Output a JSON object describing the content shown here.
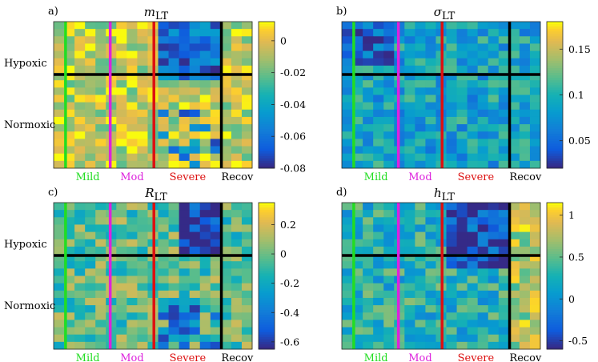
{
  "chart_data": [
    {
      "type": "heatmap",
      "panel_label": "a)",
      "title_var": "m",
      "title_sub": "LT",
      "colorbar_ticks": [
        "0",
        "-0.02",
        "-0.04",
        "-0.06",
        "-0.08"
      ],
      "colorbar_tick_values": [
        0,
        -0.02,
        -0.04,
        -0.06,
        -0.08
      ],
      "clim": [
        -0.08,
        0.012
      ],
      "phase_labels": [
        "Mild",
        "Mod",
        "Severe",
        "Recov"
      ],
      "row_labels": [
        "Hypoxic",
        "Normoxic"
      ]
    },
    {
      "type": "heatmap",
      "panel_label": "b)",
      "title_var": "σ",
      "title_sub": "LT",
      "colorbar_ticks": [
        "0.15",
        "0.1",
        "0.05"
      ],
      "colorbar_tick_values": [
        0.15,
        0.1,
        0.05
      ],
      "clim": [
        0.02,
        0.18
      ],
      "phase_labels": [
        "Mild",
        "Mod",
        "Severe",
        "Recov"
      ],
      "row_labels": []
    },
    {
      "type": "heatmap",
      "panel_label": "c)",
      "title_var": "R",
      "title_sub": "LT",
      "colorbar_ticks": [
        "0.2",
        "0",
        "-0.2",
        "-0.4",
        "-0.6"
      ],
      "colorbar_tick_values": [
        0.2,
        0,
        -0.2,
        -0.4,
        -0.6
      ],
      "clim": [
        -0.65,
        0.35
      ],
      "phase_labels": [
        "Mild",
        "Mod",
        "Severe",
        "Recov"
      ],
      "row_labels": [
        "Hypoxic",
        "Normoxic"
      ]
    },
    {
      "type": "heatmap",
      "panel_label": "d)",
      "title_var": "h",
      "title_sub": "LT",
      "colorbar_ticks": [
        "1",
        "0.5",
        "0",
        "-0.5"
      ],
      "colorbar_tick_values": [
        1,
        0.5,
        0,
        -0.5
      ],
      "clim": [
        -0.6,
        1.15
      ],
      "phase_labels": [
        "Mild",
        "Mod",
        "Severe",
        "Recov"
      ],
      "row_labels": []
    }
  ],
  "colors": {
    "mild": "#22dd22",
    "mod": "#dd22dd",
    "severe": "#dd1111",
    "recov": "#000000",
    "separator": "#000000"
  }
}
